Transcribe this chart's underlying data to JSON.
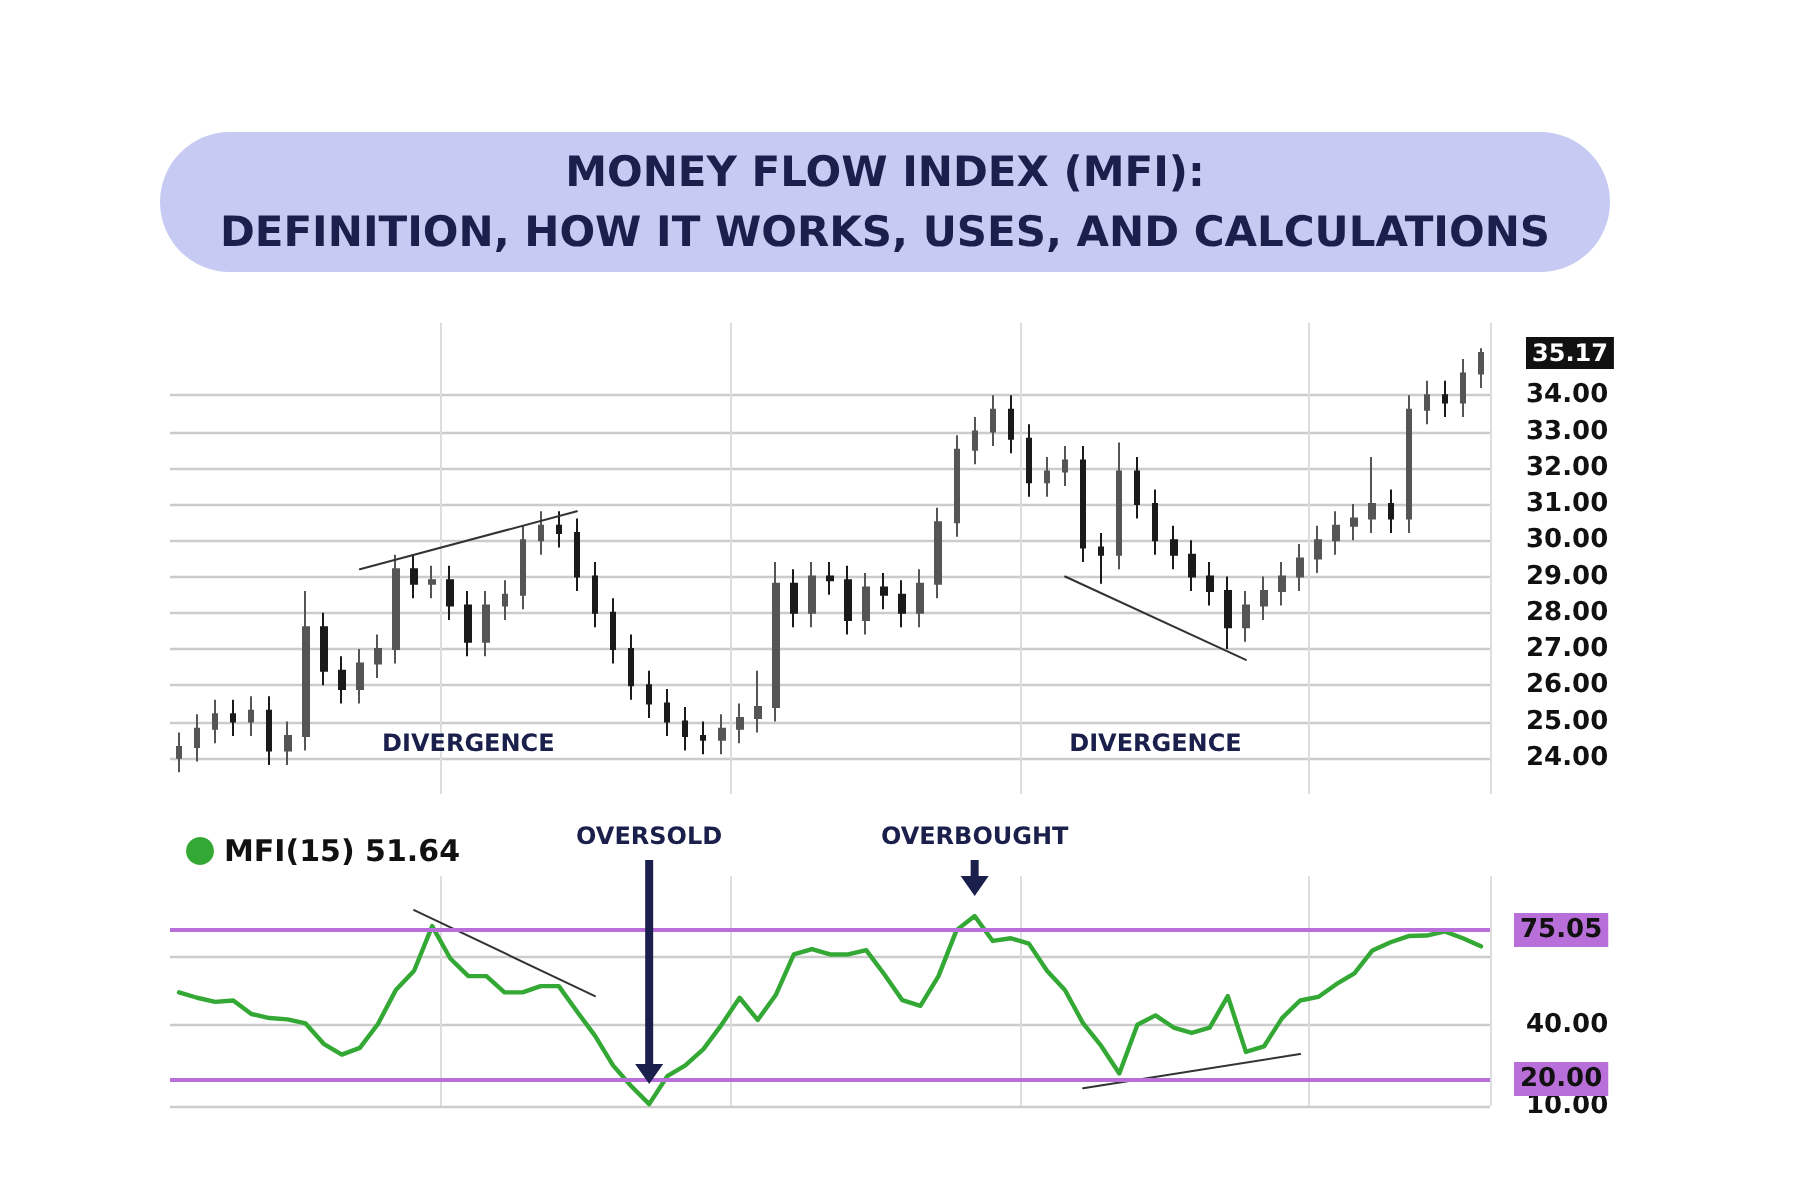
{
  "chart_data": [
    {
      "type": "candlestick",
      "title": "MONEY FLOW INDEX (MFI):\nDEFINITION, HOW IT WORKS, USES, AND CALCULATIONS",
      "categories": [
        null,
        null,
        null,
        null,
        null,
        null,
        null,
        null,
        null,
        null,
        null,
        null,
        null,
        null,
        null,
        null,
        null,
        null,
        null,
        null,
        null,
        null,
        null,
        null,
        null,
        null,
        null,
        null,
        null,
        null,
        null,
        null,
        null,
        null,
        null,
        null,
        null,
        null,
        null,
        null,
        null,
        null,
        null,
        null,
        null,
        null,
        null,
        null,
        null,
        null,
        null,
        null,
        null,
        null,
        null,
        null,
        null,
        null,
        null,
        null,
        null,
        null,
        null,
        null,
        null,
        null,
        null,
        null,
        null,
        null,
        null,
        null,
        null
      ],
      "series": [
        {
          "type": "candlestick",
          "colors": [
            "#555555",
            "#555555",
            "#555555",
            "#1a1a1a",
            "#555555",
            "#1a1a1a",
            "#555555",
            "#555555",
            "#1a1a1a",
            "#1a1a1a",
            "#555555",
            "#555555",
            "#555555",
            "#1a1a1a",
            "#555555",
            "#1a1a1a",
            "#1a1a1a",
            "#555555",
            "#555555",
            "#555555",
            "#555555",
            "#1a1a1a",
            "#1a1a1a",
            "#1a1a1a",
            "#1a1a1a",
            "#1a1a1a",
            "#1a1a1a",
            "#1a1a1a",
            "#1a1a1a",
            "#1a1a1a",
            "#555555",
            "#555555",
            "#555555",
            "#555555",
            "#1a1a1a",
            "#555555",
            "#1a1a1a",
            "#1a1a1a",
            "#555555",
            "#1a1a1a",
            "#1a1a1a",
            "#555555",
            "#555555",
            "#555555",
            "#555555",
            "#555555",
            "#1a1a1a",
            "#1a1a1a",
            "#555555",
            "#555555",
            "#1a1a1a",
            "#1a1a1a",
            "#555555",
            "#1a1a1a",
            "#1a1a1a",
            "#1a1a1a",
            "#1a1a1a",
            "#1a1a1a",
            "#1a1a1a",
            "#555555",
            "#555555",
            "#555555",
            "#555555",
            "#555555",
            "#555555",
            "#555555",
            "#555555",
            "#1a1a1a",
            "#555555",
            "#555555",
            "#1a1a1a",
            "#555555",
            "#555555"
          ],
          "ohlc": [
            [
              24.0,
              24.7,
              23.6,
              24.3
            ],
            [
              24.3,
              25.2,
              23.9,
              24.8
            ],
            [
              24.8,
              25.6,
              24.4,
              25.2
            ],
            [
              25.2,
              25.6,
              24.6,
              25.0
            ],
            [
              25.0,
              25.7,
              24.6,
              25.3
            ],
            [
              25.3,
              25.7,
              23.8,
              24.2
            ],
            [
              24.2,
              25.0,
              23.8,
              24.6
            ],
            [
              24.6,
              28.6,
              24.2,
              27.6
            ],
            [
              27.6,
              28.0,
              26.0,
              26.4
            ],
            [
              26.4,
              26.8,
              25.5,
              25.9
            ],
            [
              25.9,
              27.0,
              25.5,
              26.6
            ],
            [
              26.6,
              27.4,
              26.2,
              27.0
            ],
            [
              27.0,
              29.6,
              26.6,
              29.2
            ],
            [
              29.2,
              29.6,
              28.4,
              28.8
            ],
            [
              28.8,
              29.3,
              28.4,
              28.9
            ],
            [
              28.9,
              29.3,
              27.8,
              28.2
            ],
            [
              28.2,
              28.6,
              26.8,
              27.2
            ],
            [
              27.2,
              28.6,
              26.8,
              28.2
            ],
            [
              28.2,
              28.9,
              27.8,
              28.5
            ],
            [
              28.5,
              30.4,
              28.1,
              30.0
            ],
            [
              30.0,
              30.8,
              29.6,
              30.4
            ],
            [
              30.4,
              30.8,
              29.8,
              30.2
            ],
            [
              30.2,
              30.6,
              28.6,
              29.0
            ],
            [
              29.0,
              29.4,
              27.6,
              28.0
            ],
            [
              28.0,
              28.4,
              26.6,
              27.0
            ],
            [
              27.0,
              27.4,
              25.6,
              26.0
            ],
            [
              26.0,
              26.4,
              25.1,
              25.5
            ],
            [
              25.5,
              25.9,
              24.6,
              25.0
            ],
            [
              25.0,
              25.4,
              24.2,
              24.6
            ],
            [
              24.6,
              25.0,
              24.1,
              24.5
            ],
            [
              24.5,
              25.2,
              24.1,
              24.8
            ],
            [
              24.8,
              25.5,
              24.4,
              25.1
            ],
            [
              25.1,
              26.4,
              24.7,
              25.4
            ],
            [
              25.4,
              29.4,
              25.0,
              28.8
            ],
            [
              28.8,
              29.2,
              27.6,
              28.0
            ],
            [
              28.0,
              29.4,
              27.6,
              29.0
            ],
            [
              29.0,
              29.4,
              28.5,
              28.9
            ],
            [
              28.9,
              29.3,
              27.4,
              27.8
            ],
            [
              27.8,
              29.1,
              27.4,
              28.7
            ],
            [
              28.7,
              29.1,
              28.1,
              28.5
            ],
            [
              28.5,
              28.9,
              27.6,
              28.0
            ],
            [
              28.0,
              29.2,
              27.6,
              28.8
            ],
            [
              28.8,
              30.9,
              28.4,
              30.5
            ],
            [
              30.5,
              32.9,
              30.1,
              32.5
            ],
            [
              32.5,
              33.4,
              32.1,
              33.0
            ],
            [
              33.0,
              34.0,
              32.6,
              33.6
            ],
            [
              33.6,
              34.0,
              32.4,
              32.8
            ],
            [
              32.8,
              33.2,
              31.2,
              31.6
            ],
            [
              31.6,
              32.3,
              31.2,
              31.9
            ],
            [
              31.9,
              32.6,
              31.5,
              32.2
            ],
            [
              32.2,
              32.6,
              29.4,
              29.8
            ],
            [
              29.8,
              30.2,
              28.8,
              29.6
            ],
            [
              29.6,
              32.7,
              29.2,
              31.9
            ],
            [
              31.9,
              32.3,
              30.6,
              31.0
            ],
            [
              31.0,
              31.4,
              29.6,
              30.0
            ],
            [
              30.0,
              30.4,
              29.2,
              29.6
            ],
            [
              29.6,
              30.0,
              28.6,
              29.0
            ],
            [
              29.0,
              29.4,
              28.2,
              28.6
            ],
            [
              28.6,
              29.0,
              27.0,
              27.6
            ],
            [
              27.6,
              28.6,
              27.2,
              28.2
            ],
            [
              28.2,
              29.0,
              27.8,
              28.6
            ],
            [
              28.6,
              29.4,
              28.2,
              29.0
            ],
            [
              29.0,
              29.9,
              28.6,
              29.5
            ],
            [
              29.5,
              30.4,
              29.1,
              30.0
            ],
            [
              30.0,
              30.8,
              29.6,
              30.4
            ],
            [
              30.4,
              31.0,
              30.0,
              30.6
            ],
            [
              30.6,
              32.3,
              30.2,
              31.0
            ],
            [
              31.0,
              31.4,
              30.2,
              30.6
            ],
            [
              30.6,
              34.0,
              30.2,
              33.6
            ],
            [
              33.6,
              34.4,
              33.2,
              34.0
            ],
            [
              34.0,
              34.4,
              33.4,
              33.8
            ],
            [
              33.8,
              35.0,
              33.4,
              34.6
            ],
            [
              34.6,
              35.3,
              34.2,
              35.17
            ]
          ]
        },
        {
          "type": "line",
          "color": "#333333",
          "values": [
            null,
            null,
            null,
            null,
            null,
            null,
            null,
            null,
            null,
            null,
            29.2,
            null,
            null,
            null,
            null,
            null,
            null,
            null,
            null,
            null,
            null,
            null,
            30.8,
            null,
            null,
            null,
            null,
            null,
            null,
            null,
            null,
            null,
            null,
            null,
            null,
            null,
            null,
            null,
            null,
            null,
            null,
            null,
            null,
            null,
            null,
            null,
            null,
            null,
            null,
            null,
            null,
            null,
            null,
            null,
            null,
            null,
            null,
            null,
            null,
            null,
            null,
            null,
            null,
            null,
            null,
            null,
            null,
            null,
            null,
            null,
            null,
            null,
            null
          ]
        },
        {
          "type": "line",
          "color": "#333333",
          "values": [
            null,
            null,
            null,
            null,
            null,
            null,
            null,
            null,
            null,
            null,
            null,
            null,
            null,
            null,
            null,
            null,
            null,
            null,
            null,
            null,
            null,
            null,
            null,
            null,
            null,
            null,
            null,
            null,
            null,
            null,
            null,
            null,
            null,
            null,
            null,
            null,
            null,
            null,
            null,
            null,
            null,
            null,
            null,
            null,
            null,
            null,
            null,
            null,
            null,
            29.0,
            null,
            null,
            null,
            null,
            null,
            null,
            null,
            null,
            null,
            26.7,
            null,
            null,
            null,
            null,
            null,
            null,
            null,
            null,
            null,
            null,
            null,
            null,
            null
          ]
        }
      ],
      "ylim": [
        23,
        36
      ],
      "yticks": [
        {
          "value": 24,
          "label": "24.00"
        },
        {
          "value": 25,
          "label": "25.00"
        },
        {
          "value": 26,
          "label": "26.00"
        },
        {
          "value": 27,
          "label": "27.00"
        },
        {
          "value": 28,
          "label": "28.00"
        },
        {
          "value": 29,
          "label": "29.00"
        },
        {
          "value": 30,
          "label": "30.00"
        },
        {
          "value": 31,
          "label": "31.00"
        },
        {
          "value": 32,
          "label": "32.00"
        },
        {
          "value": 33,
          "label": "33.00"
        },
        {
          "value": 34,
          "label": "34.00"
        }
      ],
      "grid": true,
      "marker": "none",
      "annotations": [
        "DIVERGENCE",
        "DIVERGENCE",
        "35.17"
      ]
    },
    {
      "type": "line",
      "categories": [
        null,
        null,
        null,
        null,
        null,
        null,
        null,
        null,
        null,
        null,
        null,
        null,
        null,
        null,
        null,
        null,
        null,
        null,
        null,
        null,
        null,
        null,
        null,
        null,
        null,
        null,
        null,
        null,
        null,
        null,
        null,
        null,
        null,
        null,
        null,
        null,
        null,
        null,
        null,
        null,
        null,
        null,
        null,
        null,
        null,
        null,
        null,
        null,
        null,
        null,
        null,
        null,
        null,
        null,
        null,
        null,
        null,
        null,
        null,
        null,
        null,
        null,
        null,
        null,
        null,
        null,
        null,
        null,
        null,
        null,
        null,
        null,
        null
      ],
      "series": [
        {
          "name": "MFI(15) 51.64",
          "color": "#34a834",
          "values": [
            52,
            50,
            48.5,
            49,
            44,
            42.5,
            42,
            40.5,
            33,
            29,
            31.5,
            40.3,
            53,
            60,
            76.5,
            64.5,
            58,
            58,
            52,
            52,
            54.3,
            54.3,
            45,
            36,
            25,
            17.4,
            10.7,
            21,
            25,
            31,
            40,
            50,
            41.8,
            51,
            66,
            68,
            66,
            66,
            67.6,
            58.7,
            49.1,
            47,
            58,
            75,
            80.2,
            71,
            72,
            70,
            60,
            52.8,
            40.5,
            32.2,
            22,
            40,
            43.5,
            39,
            37,
            39,
            50.6,
            30,
            32,
            42.5,
            49,
            50.3,
            55,
            59,
            67.5,
            70.5,
            72.8,
            73,
            74.5,
            72,
            69
          ]
        },
        {
          "type": "line",
          "color": "#333333",
          "values": [
            null,
            null,
            null,
            null,
            null,
            null,
            null,
            null,
            null,
            null,
            null,
            null,
            null,
            82.4,
            null,
            null,
            null,
            null,
            null,
            null,
            null,
            null,
            null,
            50.6,
            null,
            null,
            null,
            null,
            null,
            null,
            null,
            null,
            null,
            null,
            null,
            null,
            null,
            null,
            null,
            null,
            null,
            null,
            null,
            null,
            null,
            null,
            null,
            null,
            null,
            null,
            null,
            null,
            null,
            null,
            null,
            null,
            null,
            null,
            null,
            null,
            null,
            null,
            null,
            null,
            null,
            null,
            null,
            null,
            null,
            null,
            null,
            null,
            null
          ]
        },
        {
          "type": "line",
          "color": "#333333",
          "values": [
            null,
            null,
            null,
            null,
            null,
            null,
            null,
            null,
            null,
            null,
            null,
            null,
            null,
            null,
            null,
            null,
            null,
            null,
            null,
            null,
            null,
            null,
            null,
            null,
            null,
            null,
            null,
            null,
            null,
            null,
            null,
            null,
            null,
            null,
            null,
            null,
            null,
            null,
            null,
            null,
            null,
            null,
            null,
            null,
            null,
            null,
            null,
            null,
            null,
            null,
            16.6,
            null,
            null,
            null,
            null,
            null,
            null,
            null,
            null,
            null,
            null,
            null,
            29.2,
            null,
            null,
            null,
            null,
            null,
            null,
            null,
            null,
            null,
            null
          ]
        }
      ],
      "ylim": [
        10,
        95
      ],
      "yticks": [
        {
          "value": 10,
          "label": "10.00"
        },
        {
          "value": 40,
          "label": "40.00"
        },
        {
          "value": 65,
          "label": null
        }
      ],
      "ref_lines": [
        {
          "axis": "y",
          "value": 75.05,
          "label": "75.05",
          "color": "#b86fd9"
        },
        {
          "axis": "y",
          "value": 20,
          "label": "20.00",
          "color": "#b86fd9"
        }
      ],
      "grid": true,
      "legend": "top left",
      "marker": "none",
      "annotations": [
        "OVERSOLD",
        {
          "text": "OVERBOUGHT",
          "y": 80.2
        }
      ]
    }
  ]
}
